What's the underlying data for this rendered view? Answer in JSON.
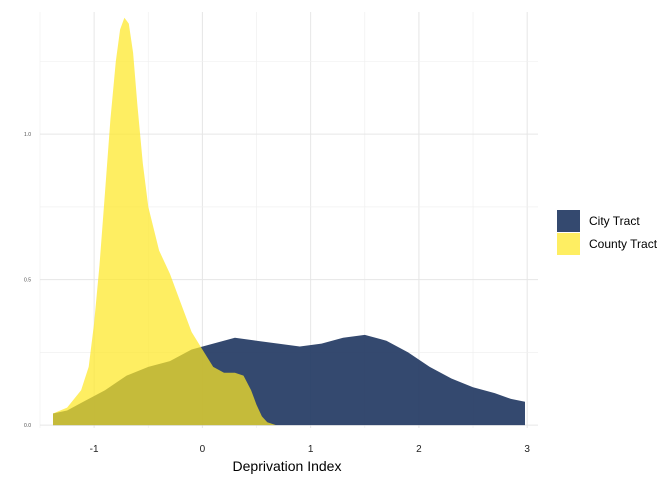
{
  "chart_data": {
    "type": "area",
    "title": "",
    "xlabel": "Deprivation Index",
    "ylabel": "",
    "xlim": [
      -1.5,
      3.1
    ],
    "ylim": [
      -0.01,
      1.42
    ],
    "x_ticks": [
      -1,
      0,
      1,
      2,
      3
    ],
    "y_ticks": [
      0.0,
      0.5,
      1.0
    ],
    "y_tick_labels": [
      "0.0",
      "0.5",
      "1.0"
    ],
    "grid": true,
    "legend_position": "right",
    "series": [
      {
        "name": "City Tract",
        "color": "#233a63",
        "opacity": 0.92,
        "points": [
          [
            -1.38,
            0.04
          ],
          [
            -1.25,
            0.05
          ],
          [
            -1.1,
            0.08
          ],
          [
            -0.9,
            0.12
          ],
          [
            -0.7,
            0.17
          ],
          [
            -0.5,
            0.2
          ],
          [
            -0.3,
            0.22
          ],
          [
            -0.1,
            0.26
          ],
          [
            0.1,
            0.28
          ],
          [
            0.3,
            0.3
          ],
          [
            0.5,
            0.29
          ],
          [
            0.7,
            0.28
          ],
          [
            0.9,
            0.27
          ],
          [
            1.1,
            0.28
          ],
          [
            1.3,
            0.3
          ],
          [
            1.5,
            0.31
          ],
          [
            1.7,
            0.29
          ],
          [
            1.9,
            0.25
          ],
          [
            2.1,
            0.2
          ],
          [
            2.3,
            0.16
          ],
          [
            2.5,
            0.13
          ],
          [
            2.7,
            0.11
          ],
          [
            2.85,
            0.09
          ],
          [
            2.98,
            0.08
          ]
        ]
      },
      {
        "name": "County Tract",
        "color": "#fde725",
        "opacity": 0.72,
        "points": [
          [
            -1.38,
            0.04
          ],
          [
            -1.25,
            0.06
          ],
          [
            -1.12,
            0.12
          ],
          [
            -1.05,
            0.2
          ],
          [
            -1.0,
            0.35
          ],
          [
            -0.95,
            0.55
          ],
          [
            -0.9,
            0.8
          ],
          [
            -0.85,
            1.05
          ],
          [
            -0.8,
            1.25
          ],
          [
            -0.76,
            1.36
          ],
          [
            -0.72,
            1.4
          ],
          [
            -0.68,
            1.38
          ],
          [
            -0.64,
            1.28
          ],
          [
            -0.6,
            1.1
          ],
          [
            -0.55,
            0.9
          ],
          [
            -0.5,
            0.75
          ],
          [
            -0.4,
            0.6
          ],
          [
            -0.3,
            0.52
          ],
          [
            -0.2,
            0.42
          ],
          [
            -0.1,
            0.32
          ],
          [
            0.0,
            0.26
          ],
          [
            0.1,
            0.2
          ],
          [
            0.2,
            0.18
          ],
          [
            0.3,
            0.18
          ],
          [
            0.38,
            0.17
          ],
          [
            0.45,
            0.12
          ],
          [
            0.5,
            0.07
          ],
          [
            0.55,
            0.03
          ],
          [
            0.6,
            0.01
          ],
          [
            0.68,
            0.0
          ]
        ]
      }
    ]
  }
}
